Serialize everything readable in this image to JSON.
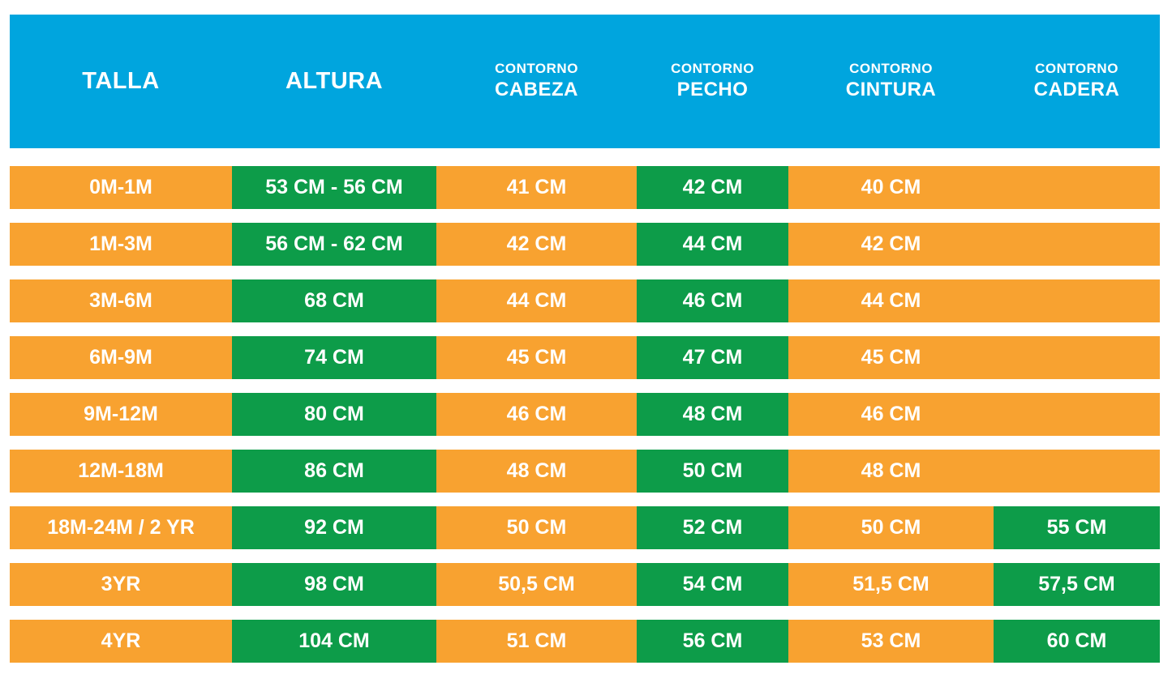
{
  "colors": {
    "page_bg": "#ffffff",
    "header_bg": "#00a5de",
    "row_bg": "#f8a230",
    "highlight_bg": "#0d9c49",
    "text": "#ffffff"
  },
  "header": {
    "talla": {
      "line1": "TALLA",
      "line2": ""
    },
    "altura": {
      "line1": "ALTURA",
      "line2": ""
    },
    "cabeza": {
      "line1": "CONTORNO",
      "line2": "CABEZA"
    },
    "pecho": {
      "line1": "CONTORNO",
      "line2": "PECHO"
    },
    "cintura": {
      "line1": "CONTORNO",
      "line2": "CINTURA"
    },
    "cadera": {
      "line1": "CONTORNO",
      "line2": "CADERA"
    }
  },
  "chart_data": {
    "type": "table",
    "columns": [
      "TALLA",
      "ALTURA",
      "CONTORNO CABEZA",
      "CONTORNO PECHO",
      "CONTORNO CINTURA",
      "CONTORNO CADERA"
    ],
    "rows": [
      [
        "0M-1M",
        "53 CM - 56 CM",
        "41 CM",
        "42 CM",
        "40 CM",
        ""
      ],
      [
        "1M-3M",
        "56 CM - 62 CM",
        "42 CM",
        "44 CM",
        "42 CM",
        ""
      ],
      [
        "3M-6M",
        "68 CM",
        "44 CM",
        "46 CM",
        "44 CM",
        ""
      ],
      [
        "6M-9M",
        "74 CM",
        "45 CM",
        "47 CM",
        "45 CM",
        ""
      ],
      [
        "9M-12M",
        "80 CM",
        "46 CM",
        "48 CM",
        "46 CM",
        ""
      ],
      [
        "12M-18M",
        "86 CM",
        "48 CM",
        "50 CM",
        "48 CM",
        ""
      ],
      [
        "18M-24M / 2 YR",
        "92 CM",
        "50 CM",
        "52 CM",
        "50 CM",
        "55 CM"
      ],
      [
        "3YR",
        "98 CM",
        "50,5 CM",
        "54 CM",
        "51,5 CM",
        "57,5 CM"
      ],
      [
        "4YR",
        "104 CM",
        "51 CM",
        "56 CM",
        "53 CM",
        "60 CM"
      ]
    ],
    "highlight_color_cells": {
      "green_columns_all_rows": [
        "ALTURA",
        "CONTORNO PECHO"
      ],
      "green_cadera_rows": [
        "18M-24M / 2 YR",
        "3YR",
        "4YR"
      ],
      "empty_cadera_rows": [
        "0M-1M",
        "1M-3M",
        "3M-6M",
        "6M-9M",
        "9M-12M",
        "12M-18M"
      ]
    }
  }
}
